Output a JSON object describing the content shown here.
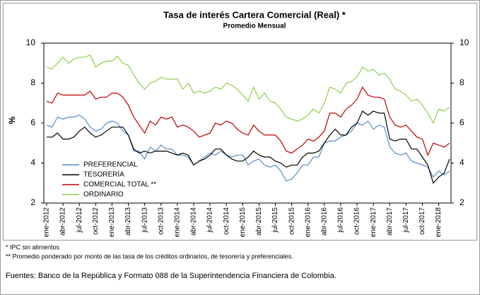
{
  "chart_data": {
    "type": "line",
    "title": "Tasa de interés Cartera Comercial (Real) *",
    "subtitle": "Promedio Mensual",
    "y_label": "%",
    "categories": [
      "ene-2012",
      null,
      null,
      "abr-2012",
      null,
      null,
      "jul-2012",
      null,
      null,
      "oct-2012",
      null,
      null,
      "ene-2013",
      null,
      null,
      "abr-2013",
      null,
      null,
      "jul-2013",
      null,
      null,
      "oct-2013",
      null,
      null,
      "ene-2014",
      null,
      null,
      "abr-2014",
      null,
      null,
      "jul-2014",
      null,
      null,
      "oct-2014",
      null,
      null,
      "ene-2015",
      null,
      null,
      "abr-2015",
      null,
      null,
      "jul-2015",
      null,
      null,
      "oct-2015",
      null,
      null,
      "ene-2016",
      null,
      null,
      "abr-2016",
      null,
      null,
      "jul-2016",
      null,
      null,
      "oct-2016",
      null,
      null,
      "ene-2017",
      null,
      null,
      "abr-2017",
      null,
      null,
      "jul-2017",
      null,
      null,
      "oct-2017",
      null,
      null,
      "ene-2018",
      null,
      null
    ],
    "series": [
      {
        "name": "PREFERENCIAL",
        "color": "#5b8cc8",
        "values": [
          5.9,
          5.8,
          6.3,
          6.2,
          6.3,
          6.3,
          6.4,
          6.2,
          5.8,
          5.6,
          5.7,
          6.0,
          6.1,
          6.0,
          5.6,
          5.4,
          4.6,
          4.6,
          4.2,
          4.8,
          4.6,
          4.9,
          4.7,
          4.7,
          4.4,
          4.4,
          4.3,
          3.9,
          4.1,
          4.3,
          4.5,
          4.4,
          4.6,
          4.4,
          4.3,
          4.4,
          4.4,
          3.9,
          4.1,
          4.2,
          3.9,
          3.8,
          3.9,
          3.6,
          3.1,
          3.2,
          3.5,
          3.9,
          3.9,
          4.3,
          4.3,
          5.0,
          5.1,
          5.1,
          5.3,
          5.4,
          5.6,
          6.0,
          5.9,
          6.1,
          5.7,
          5.9,
          5.8,
          4.8,
          4.5,
          4.4,
          4.5,
          4.1,
          4.0,
          3.9,
          3.8,
          3.3,
          3.6,
          3.4,
          3.6
        ]
      },
      {
        "name": "TESORERÍA",
        "color": "#000000",
        "values": [
          5.3,
          5.3,
          5.5,
          5.2,
          5.2,
          5.3,
          5.6,
          5.8,
          5.5,
          5.3,
          5.4,
          5.6,
          5.8,
          5.8,
          5.8,
          5.4,
          4.7,
          4.5,
          4.6,
          4.5,
          4.6,
          4.6,
          4.6,
          4.5,
          4.4,
          4.5,
          4.4,
          3.9,
          4.1,
          4.2,
          4.4,
          4.7,
          4.7,
          4.4,
          4.2,
          4.1,
          4.1,
          4.3,
          4.6,
          4.4,
          4.3,
          4.3,
          4.1,
          4.0,
          3.8,
          3.9,
          3.9,
          4.3,
          4.5,
          4.5,
          4.6,
          5.0,
          5.4,
          5.7,
          5.4,
          5.4,
          5.8,
          6.0,
          6.6,
          6.4,
          6.6,
          6.5,
          6.5,
          5.2,
          5.1,
          5.2,
          5.2,
          4.7,
          4.7,
          4.3,
          3.9,
          3.0,
          3.3,
          3.5,
          4.2
        ]
      },
      {
        "name": "COMERCIAL TOTAL **",
        "color": "#c00000",
        "values": [
          7.1,
          7.0,
          7.5,
          7.4,
          7.4,
          7.4,
          7.4,
          7.4,
          7.6,
          7.2,
          7.3,
          7.3,
          7.5,
          7.5,
          7.3,
          6.9,
          6.3,
          5.9,
          5.5,
          6.1,
          5.9,
          6.3,
          6.2,
          6.3,
          5.8,
          5.9,
          5.8,
          5.6,
          5.3,
          5.4,
          5.5,
          6.0,
          5.9,
          6.1,
          6.0,
          5.7,
          5.5,
          5.4,
          5.9,
          5.6,
          5.4,
          5.4,
          5.4,
          5.1,
          4.6,
          4.5,
          4.7,
          4.9,
          5.2,
          5.1,
          5.3,
          5.6,
          6.5,
          6.5,
          6.3,
          6.7,
          6.9,
          7.2,
          7.8,
          7.4,
          7.3,
          7.3,
          7.2,
          6.3,
          5.9,
          5.8,
          5.9,
          5.6,
          5.3,
          5.2,
          4.4,
          5.0,
          4.9,
          4.8,
          5.0
        ]
      },
      {
        "name": "ORDINARIO",
        "color": "#8fcf4c",
        "values": [
          8.8,
          8.7,
          9.0,
          9.3,
          9.0,
          9.2,
          9.3,
          9.3,
          9.4,
          8.8,
          9.0,
          9.1,
          9.1,
          9.35,
          9.0,
          8.9,
          8.4,
          8.0,
          7.7,
          8.0,
          8.1,
          8.3,
          8.2,
          8.2,
          8.2,
          7.7,
          8.0,
          7.5,
          7.6,
          7.5,
          7.6,
          7.8,
          7.7,
          8.0,
          7.9,
          7.7,
          7.4,
          7.1,
          7.8,
          7.2,
          7.5,
          7.1,
          7.0,
          6.7,
          6.3,
          6.2,
          6.1,
          6.2,
          6.4,
          6.7,
          6.5,
          7.0,
          7.8,
          7.7,
          7.5,
          8.0,
          8.1,
          8.3,
          8.8,
          8.6,
          8.7,
          8.4,
          8.5,
          8.2,
          7.7,
          7.6,
          7.4,
          7.1,
          7.2,
          6.9,
          6.5,
          6.0,
          6.7,
          6.6,
          6.8
        ]
      }
    ],
    "ylim": [
      2,
      10
    ],
    "yticks": [
      2,
      4,
      6,
      8,
      10
    ],
    "grid": false,
    "legend": "lower left"
  },
  "notes": [
    "* IPC sin alimentos",
    "** Promedio ponderado por monto de las tasa de los créditos ordinarios, de tesorería y preferenciales.",
    "Fuentes: Banco de la República y Formato 088 de la Superintendencia Financiera de Colombia."
  ]
}
